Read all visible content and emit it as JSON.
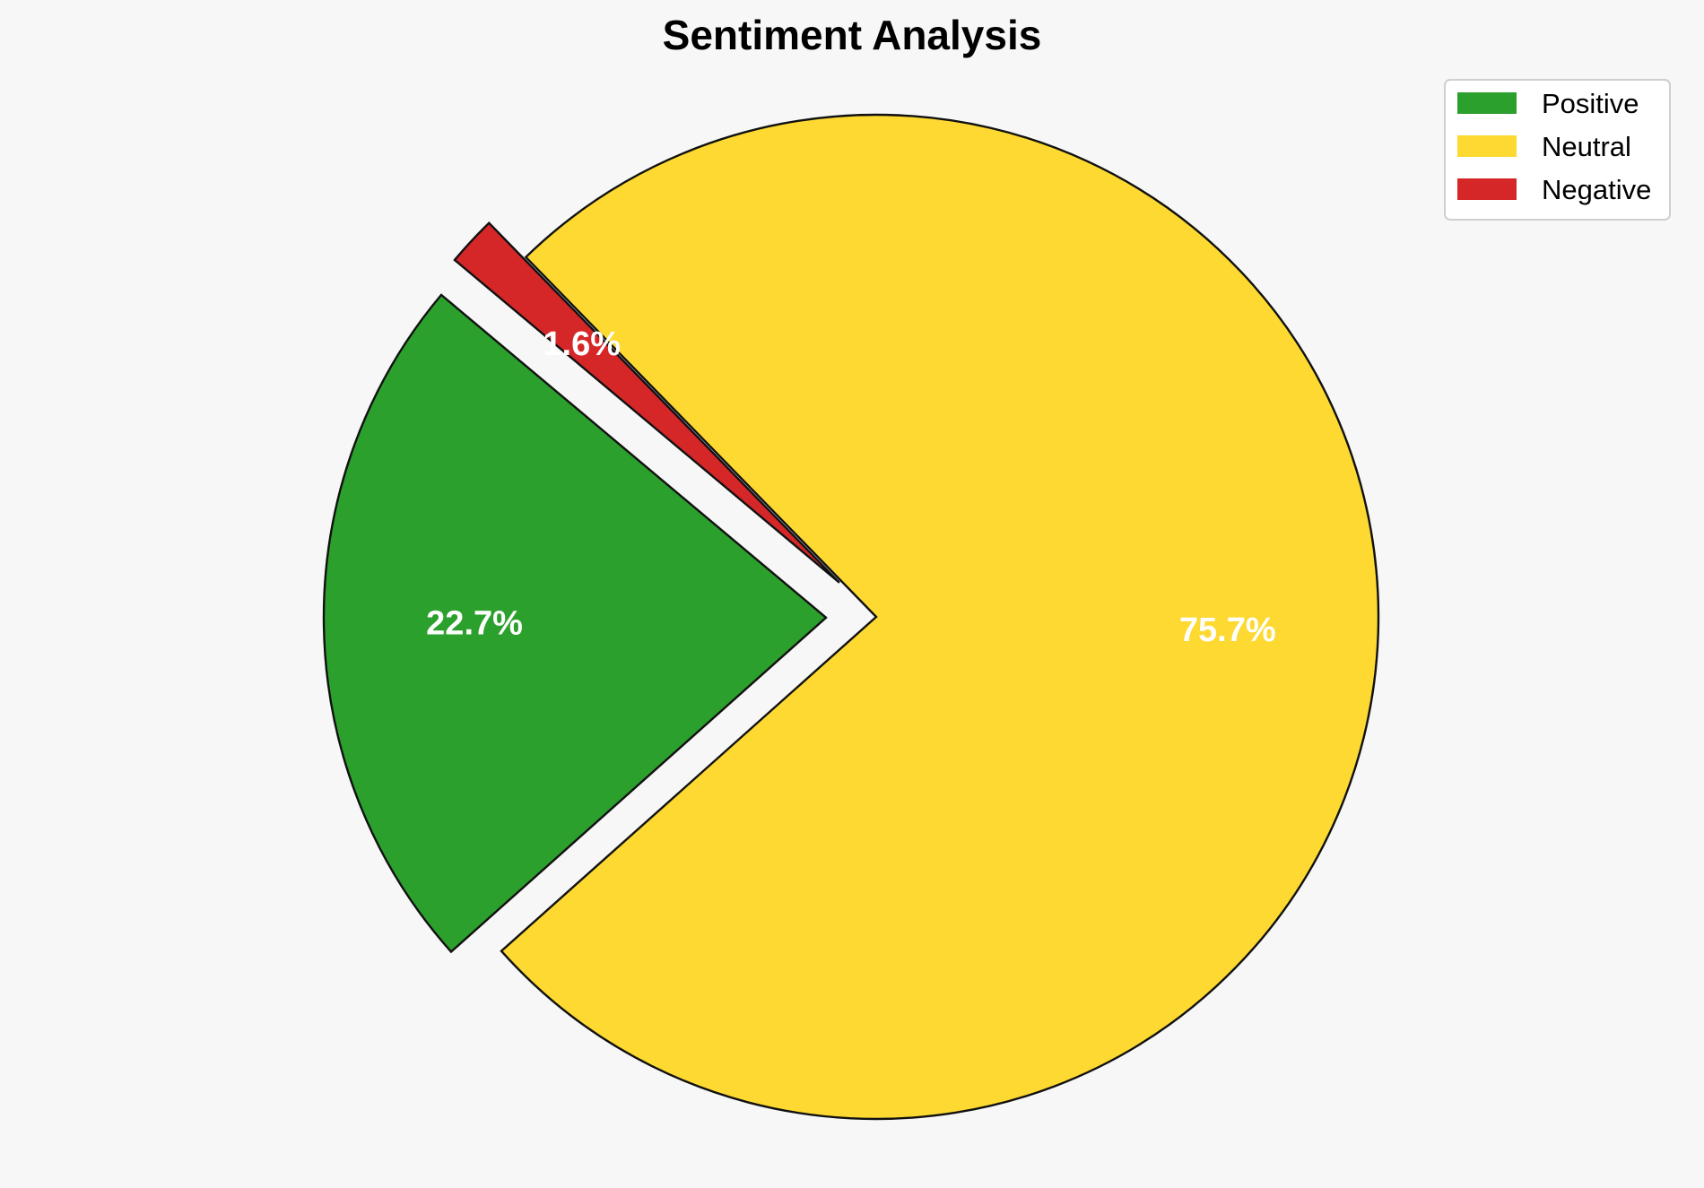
{
  "chart_data": {
    "type": "pie",
    "title": "Sentiment Analysis",
    "categories": [
      "Positive",
      "Neutral",
      "Negative"
    ],
    "values": [
      22.7,
      75.7,
      1.6
    ],
    "value_labels": [
      "22.7%",
      "75.7%",
      "1.6%"
    ],
    "colors": [
      "#2ca02c",
      "#fdd931",
      "#d62728"
    ],
    "exploded": [
      true,
      false,
      true
    ],
    "edge_color": "#111111",
    "label_color": "#ffffff",
    "legend": {
      "position": "top-right",
      "items": [
        "Positive",
        "Neutral",
        "Negative"
      ]
    }
  }
}
